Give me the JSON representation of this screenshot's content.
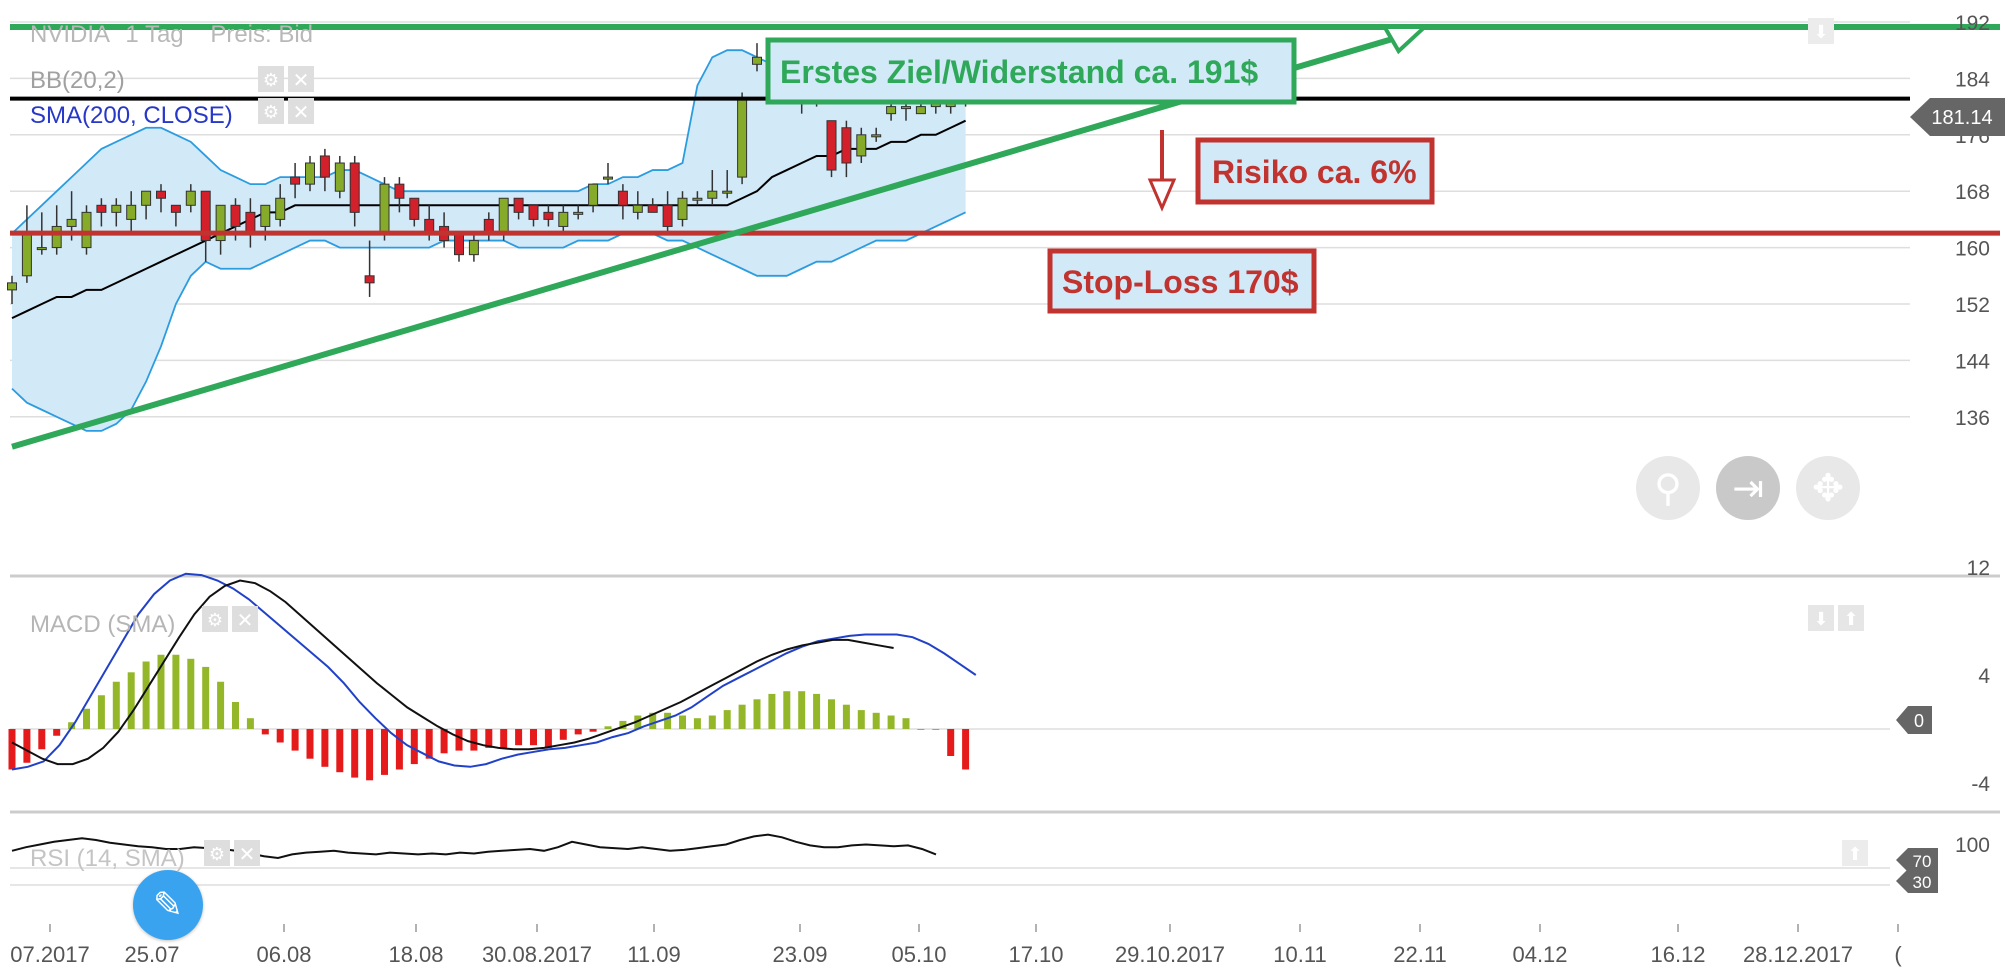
{
  "header": {
    "instrument": "NVIDIA",
    "timeframe": "1 Tag",
    "price_type": "Preis: Bid"
  },
  "indicators": {
    "bb_label": "BB(20,2)",
    "sma_label": "SMA(200, CLOSE)",
    "macd_label": "MACD (SMA)",
    "rsi_label": "RSI (14, SMA)"
  },
  "annotations": {
    "target_text": "Erstes Ziel/Widerstand ca. 191$",
    "risk_text": "Risiko ca. 6%",
    "stop_text": "Stop-Loss 170$",
    "current_price_text": "181.14",
    "macd_zero_badge": "0",
    "rsi_70_badge": "70",
    "rsi_30_badge": "30"
  },
  "icons": {
    "zoom": "zoom-in-icon",
    "scroll_end": "scroll-to-end-icon",
    "pan": "pan-move-icon",
    "edit": "pencil-icon",
    "settings": "gear-icon",
    "close": "close-icon",
    "down": "arrow-down-icon",
    "up": "arrow-up-icon"
  },
  "colors": {
    "green_line": "#2fa85a",
    "red_line": "#c0332f",
    "black_line": "#000000",
    "bb_fill": "#d2e9f8",
    "bb_band": "#2b9ce0",
    "candle_up": "#86ab2a",
    "candle_down": "#d4202a",
    "macd_pos": "#94b72a",
    "macd_neg": "#e51b1b",
    "macd_line": "#2141c8",
    "signal_line": "#111111",
    "rsi_line": "#111111",
    "rsi_over": "#58c2ea",
    "grid": "#dedede",
    "axis_text": "#555555"
  },
  "chart_data": {
    "type": "candlestick",
    "title": "NVIDIA 1 Tag Preis: Bid",
    "xlabel": "",
    "ylabel": "",
    "ylim": [
      130,
      192
    ],
    "y_ticks": [
      192,
      184,
      176,
      168,
      160,
      152,
      144,
      136
    ],
    "x_ticks": [
      "07.2017",
      "25.07",
      "06.08",
      "18.08",
      "30.08.2017",
      "11.09",
      "23.09",
      "05.10",
      "17.10",
      "29.10.2017",
      "10.11",
      "22.11",
      "04.12",
      "16.12",
      "28.12.2017",
      "("
    ],
    "grid": true,
    "candles": [
      {
        "o": 154,
        "h": 156,
        "l": 152,
        "c": 155
      },
      {
        "o": 156,
        "h": 166,
        "l": 155,
        "c": 162
      },
      {
        "o": 160,
        "h": 165,
        "l": 159,
        "c": 160
      },
      {
        "o": 160,
        "h": 166,
        "l": 159,
        "c": 163
      },
      {
        "o": 163,
        "h": 168,
        "l": 161,
        "c": 164
      },
      {
        "o": 160,
        "h": 166,
        "l": 159,
        "c": 165
      },
      {
        "o": 166,
        "h": 167,
        "l": 163,
        "c": 165
      },
      {
        "o": 165,
        "h": 167,
        "l": 163,
        "c": 166
      },
      {
        "o": 164,
        "h": 168,
        "l": 162,
        "c": 166
      },
      {
        "o": 166,
        "h": 168,
        "l": 164,
        "c": 168
      },
      {
        "o": 168,
        "h": 169,
        "l": 165,
        "c": 167
      },
      {
        "o": 166,
        "h": 166,
        "l": 163,
        "c": 165
      },
      {
        "o": 166,
        "h": 169,
        "l": 165,
        "c": 168
      },
      {
        "o": 168,
        "h": 168,
        "l": 158,
        "c": 161
      },
      {
        "o": 161,
        "h": 166,
        "l": 159,
        "c": 166
      },
      {
        "o": 166,
        "h": 167,
        "l": 161,
        "c": 163
      },
      {
        "o": 165,
        "h": 167,
        "l": 160,
        "c": 162
      },
      {
        "o": 163,
        "h": 166,
        "l": 161,
        "c": 166
      },
      {
        "o": 164,
        "h": 169,
        "l": 163,
        "c": 167
      },
      {
        "o": 170,
        "h": 172,
        "l": 167,
        "c": 169
      },
      {
        "o": 169,
        "h": 173,
        "l": 168,
        "c": 172
      },
      {
        "o": 173,
        "h": 174,
        "l": 168,
        "c": 170
      },
      {
        "o": 168,
        "h": 173,
        "l": 167,
        "c": 172
      },
      {
        "o": 172,
        "h": 173,
        "l": 163,
        "c": 165
      },
      {
        "o": 156,
        "h": 161,
        "l": 153,
        "c": 155
      },
      {
        "o": 162,
        "h": 170,
        "l": 161,
        "c": 169
      },
      {
        "o": 169,
        "h": 170,
        "l": 165,
        "c": 167
      },
      {
        "o": 167,
        "h": 167,
        "l": 163,
        "c": 164
      },
      {
        "o": 164,
        "h": 166,
        "l": 161,
        "c": 162
      },
      {
        "o": 163,
        "h": 165,
        "l": 160,
        "c": 161
      },
      {
        "o": 162,
        "h": 162,
        "l": 158,
        "c": 159
      },
      {
        "o": 159,
        "h": 162,
        "l": 158,
        "c": 161
      },
      {
        "o": 164,
        "h": 165,
        "l": 161,
        "c": 162
      },
      {
        "o": 162,
        "h": 167,
        "l": 161,
        "c": 167
      },
      {
        "o": 167,
        "h": 167,
        "l": 164,
        "c": 165
      },
      {
        "o": 166,
        "h": 166,
        "l": 163,
        "c": 164
      },
      {
        "o": 165,
        "h": 166,
        "l": 163,
        "c": 164
      },
      {
        "o": 163,
        "h": 166,
        "l": 162,
        "c": 165
      },
      {
        "o": 165,
        "h": 166,
        "l": 164,
        "c": 165
      },
      {
        "o": 166,
        "h": 169,
        "l": 165,
        "c": 169
      },
      {
        "o": 170,
        "h": 172,
        "l": 169,
        "c": 170
      },
      {
        "o": 168,
        "h": 169,
        "l": 164,
        "c": 166
      },
      {
        "o": 165,
        "h": 168,
        "l": 164,
        "c": 166
      },
      {
        "o": 166,
        "h": 167,
        "l": 165,
        "c": 165
      },
      {
        "o": 166,
        "h": 168,
        "l": 162,
        "c": 163
      },
      {
        "o": 164,
        "h": 168,
        "l": 163,
        "c": 167
      },
      {
        "o": 167,
        "h": 168,
        "l": 166,
        "c": 167
      },
      {
        "o": 167,
        "h": 171,
        "l": 166,
        "c": 168
      },
      {
        "o": 168,
        "h": 171,
        "l": 167,
        "c": 168
      },
      {
        "o": 170,
        "h": 182,
        "l": 169,
        "c": 181
      },
      {
        "o": 186,
        "h": 189,
        "l": 185,
        "c": 187
      },
      {
        "o": 185,
        "h": 188,
        "l": 184,
        "c": 187
      },
      {
        "o": 187,
        "h": 189,
        "l": 183,
        "c": 185
      },
      {
        "o": 181,
        "h": 184,
        "l": 179,
        "c": 182
      },
      {
        "o": 182,
        "h": 183,
        "l": 180,
        "c": 181
      },
      {
        "o": 178,
        "h": 178,
        "l": 170,
        "c": 171
      },
      {
        "o": 177,
        "h": 178,
        "l": 170,
        "c": 172
      },
      {
        "o": 173,
        "h": 177,
        "l": 172,
        "c": 176
      },
      {
        "o": 176,
        "h": 177,
        "l": 175,
        "c": 176
      },
      {
        "o": 179,
        "h": 181,
        "l": 178,
        "c": 180
      },
      {
        "o": 180,
        "h": 181,
        "l": 178,
        "c": 180
      },
      {
        "o": 179,
        "h": 181,
        "l": 179,
        "c": 180
      },
      {
        "o": 180,
        "h": 182,
        "l": 179,
        "c": 181
      },
      {
        "o": 180,
        "h": 182,
        "l": 179,
        "c": 181
      },
      {
        "o": 182,
        "h": 182,
        "l": 180,
        "c": 181
      }
    ],
    "bb_upper": [
      162,
      164,
      166,
      168,
      170,
      172,
      174,
      175,
      176,
      177,
      177,
      176,
      175,
      173,
      171,
      170,
      169,
      169,
      170,
      170,
      170,
      170,
      171,
      171,
      170,
      169,
      168,
      168,
      168,
      168,
      168,
      168,
      168,
      168,
      168,
      168,
      168,
      168,
      168,
      169,
      169,
      170,
      170,
      171,
      171,
      172,
      183,
      187,
      188,
      188,
      187,
      186,
      185,
      184,
      183,
      183,
      183,
      184,
      183,
      183,
      183,
      182,
      182,
      182,
      182
    ],
    "bb_lower": [
      140,
      138,
      137,
      136,
      135,
      134,
      134,
      135,
      137,
      141,
      146,
      152,
      156,
      158,
      157,
      157,
      157,
      158,
      159,
      160,
      161,
      161,
      160,
      160,
      160,
      160,
      160,
      160,
      160,
      161,
      161,
      161,
      161,
      161,
      160,
      160,
      160,
      160,
      161,
      161,
      161,
      162,
      162,
      162,
      161,
      161,
      160,
      159,
      158,
      157,
      156,
      156,
      156,
      157,
      158,
      158,
      159,
      160,
      161,
      161,
      161,
      162,
      163,
      164,
      165
    ],
    "sma_20": [
      150,
      151,
      152,
      153,
      153,
      154,
      154,
      155,
      156,
      157,
      158,
      159,
      160,
      161,
      162,
      163,
      164,
      165,
      165,
      166,
      166,
      166,
      166,
      166,
      166,
      166,
      166,
      166,
      166,
      166,
      166,
      166,
      166,
      166,
      166,
      166,
      166,
      166,
      166,
      166,
      166,
      166,
      166,
      166,
      166,
      166,
      166,
      166,
      166,
      167,
      168,
      170,
      171,
      172,
      173,
      173,
      174,
      174,
      174,
      175,
      175,
      176,
      176,
      177,
      178
    ],
    "sma_200_level": 181.14,
    "resistance_level": 191,
    "stop_level": 170,
    "trendline": {
      "from": {
        "x_index": 0,
        "y": 138
      },
      "to": {
        "x_index": 94,
        "y": 191
      }
    },
    "macd": {
      "ylim": [
        -8,
        12
      ],
      "y_ticks": [
        12,
        4,
        -4
      ],
      "histogram": [
        -3,
        -2.5,
        -1.5,
        -0.5,
        0.5,
        1.5,
        2.5,
        3.5,
        4.2,
        5,
        5.5,
        5.5,
        5.2,
        4.6,
        3.5,
        2,
        0.8,
        -0.4,
        -1,
        -1.6,
        -2.2,
        -2.8,
        -3.2,
        -3.6,
        -3.8,
        -3.4,
        -3,
        -2.6,
        -2.2,
        -1.8,
        -1.6,
        -1.6,
        -1.4,
        -1.4,
        -1.2,
        -1.2,
        -1.4,
        -0.8,
        -0.4,
        -0.2,
        0.2,
        0.6,
        1,
        1.2,
        1.2,
        1,
        0.8,
        1,
        1.4,
        1.8,
        2.2,
        2.6,
        2.8,
        2.8,
        2.6,
        2.2,
        1.8,
        1.4,
        1.2,
        1,
        0.8,
        0,
        0,
        -2,
        -3
      ],
      "macd_line": [
        -3,
        -2.8,
        -2.4,
        -1.2,
        0.5,
        2.5,
        4.5,
        6.5,
        8.5,
        10,
        11,
        11.5,
        11.4,
        11,
        10.4,
        9.6,
        8.6,
        7.6,
        6.6,
        5.6,
        4.6,
        3.4,
        2,
        0.8,
        -0.3,
        -1.2,
        -1.8,
        -2.4,
        -2.7,
        -2.8,
        -2.6,
        -2.2,
        -1.9,
        -1.7,
        -1.5,
        -1.4,
        -1.2,
        -1,
        -0.6,
        -0.3,
        0.2,
        0.6,
        1,
        1.6,
        2.4,
        3.2,
        3.8,
        4.4,
        5,
        5.6,
        6.1,
        6.5,
        6.7,
        6.9,
        7,
        7,
        7,
        6.8,
        6.3,
        5.6,
        4.8,
        4
      ],
      "signal_line": [
        -1,
        -1.6,
        -2.2,
        -2.6,
        -2.6,
        -2.2,
        -1.4,
        -0.2,
        1.4,
        3.2,
        5,
        6.8,
        8.5,
        9.8,
        10.6,
        11,
        10.8,
        10.2,
        9.4,
        8.4,
        7.4,
        6.4,
        5.4,
        4.4,
        3.4,
        2.5,
        1.6,
        0.9,
        0.2,
        -0.4,
        -0.9,
        -1.2,
        -1.4,
        -1.5,
        -1.5,
        -1.4,
        -1.2,
        -1,
        -0.7,
        -0.3,
        0.1,
        0.5,
        1,
        1.5,
        2,
        2.6,
        3.2,
        3.8,
        4.4,
        5,
        5.5,
        5.9,
        6.2,
        6.4,
        6.6,
        6.6,
        6.4,
        6.2,
        6
      ]
    },
    "rsi": {
      "ylim": [
        0,
        100
      ],
      "y_ticks": [
        100
      ],
      "levels": [
        70,
        30
      ],
      "values": [
        48,
        52,
        55,
        58,
        60,
        62,
        60,
        57,
        55,
        53,
        52,
        50,
        50,
        52,
        51,
        50,
        48,
        45,
        42,
        40,
        44,
        46,
        47,
        48,
        46,
        45,
        44,
        46,
        45,
        44,
        45,
        44,
        46,
        45,
        47,
        48,
        49,
        50,
        48,
        52,
        58,
        55,
        52,
        51,
        50,
        52,
        50,
        48,
        49,
        51,
        53,
        55,
        60,
        64,
        66,
        63,
        58,
        54,
        52,
        52,
        54,
        55,
        54,
        53,
        54,
        50,
        44
      ]
    }
  }
}
